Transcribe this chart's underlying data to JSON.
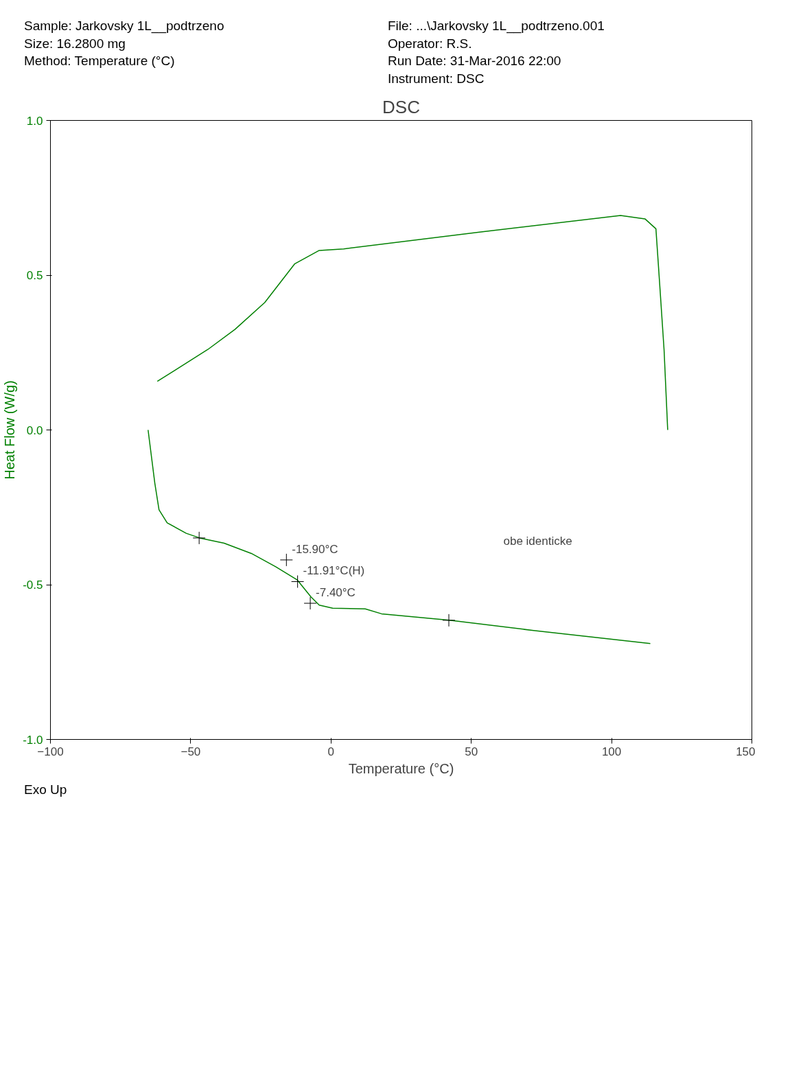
{
  "chart_data": {
    "type": "line",
    "title": "DSC",
    "xlabel": "Temperature (°C)",
    "ylabel": "Heat Flow (W/g)",
    "annotations": [
      "Sample: Jarkovsky 1L__podtrzeno",
      "Size:  16.2800 mg",
      "Method: Temperature (°C)",
      "File: ...\\Jarkovsky 1L__podtrzeno.001",
      "Operator: R.S.",
      "Run Date: 31-Mar-2016 22:00",
      "Instrument: DSC",
      "Exo Up",
      "obe identicke",
      {
        "text": "-15.90°C",
        "x": -15.9,
        "y": -0.42
      },
      {
        "text": "-11.91°C(H)",
        "x": -11.91,
        "y": -0.49
      },
      {
        "text": "-7.40°C",
        "x": -7.4,
        "y": -0.56
      }
    ],
    "series": [
      {
        "color": "#008000",
        "x": [
          -61.9,
          -43.9,
          -34.2,
          -23.6,
          -12.9,
          -4.2,
          4.5,
          52.9,
          103.2,
          111.9,
          115.8,
          117.1,
          118.7,
          120.0
        ],
        "values": [
          0.157,
          0.26,
          0.325,
          0.412,
          0.537,
          0.58,
          0.585,
          0.639,
          0.693,
          0.682,
          0.65,
          0.477,
          0.26,
          0.0
        ]
      },
      {
        "color": "#008000",
        "x": [
          -65.2,
          -62.8,
          -61.3,
          -58.4,
          -51.6,
          -46.8,
          -38.1,
          -28.4,
          -19.7,
          -12.0,
          -7.1,
          -4.2,
          0.6,
          12.2,
          18.0,
          42.2,
          72.2,
          113.8
        ],
        "values": [
          0.0,
          -0.172,
          -0.258,
          -0.3,
          -0.334,
          -0.349,
          -0.366,
          -0.399,
          -0.442,
          -0.485,
          -0.54,
          -0.566,
          -0.576,
          -0.578,
          -0.594,
          -0.615,
          -0.648,
          -0.69
        ]
      },
      {
        "type": "scatter",
        "marker": "cross",
        "color": "#000000",
        "x": [
          -47.0,
          -15.9,
          -11.91,
          -7.4,
          42.0
        ],
        "values": [
          -0.349,
          -0.42,
          -0.49,
          -0.56,
          -0.615
        ]
      }
    ],
    "xlim": [
      -100,
      150
    ],
    "xticks": [
      -100,
      -50,
      0,
      50,
      100,
      150
    ],
    "ylim": [
      -1.0,
      1.0
    ],
    "yticks": [
      {
        "value": -1.0,
        "label": "-1.0"
      },
      {
        "value": -0.5,
        "label": "-0.5"
      },
      {
        "value": 0.0,
        "label": "0.0"
      },
      {
        "value": 0.5,
        "label": "0.5"
      },
      {
        "value": 1.0,
        "label": "1.0"
      }
    ],
    "grid": false,
    "marker": "none",
    "line_style": "solid"
  }
}
